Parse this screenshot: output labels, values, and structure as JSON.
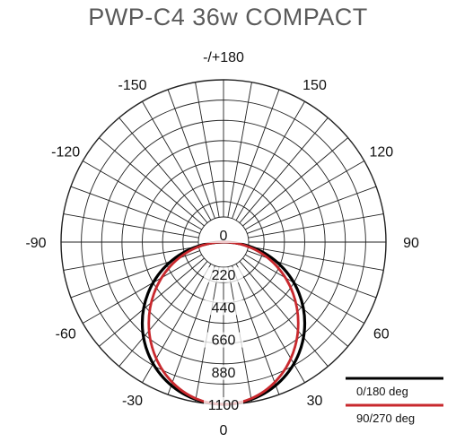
{
  "title": "PWP-C4 36w COMPACT",
  "chart_data": {
    "type": "polar",
    "title": "PWP-C4 36w COMPACT",
    "angle_labels": [
      {
        "angle": 180,
        "text": "-/+180"
      },
      {
        "angle": 150,
        "text": "150"
      },
      {
        "angle": -150,
        "text": "-150"
      },
      {
        "angle": 120,
        "text": "120"
      },
      {
        "angle": -120,
        "text": "-120"
      },
      {
        "angle": 90,
        "text": "90"
      },
      {
        "angle": -90,
        "text": "-90"
      },
      {
        "angle": 60,
        "text": "60"
      },
      {
        "angle": -60,
        "text": "-60"
      },
      {
        "angle": 30,
        "text": "30"
      },
      {
        "angle": -30,
        "text": "-30"
      },
      {
        "angle": 0,
        "text": "0"
      }
    ],
    "radial_ticks": [
      0,
      220,
      440,
      660,
      880,
      1100
    ],
    "radial_tick_labels": [
      "0",
      "220",
      "440",
      "660",
      "880",
      "1100"
    ],
    "rmax": 1100,
    "angle_step_deg": 10,
    "series": [
      {
        "name": "0/180 deg",
        "color": "#000000",
        "peak_value": 1100,
        "shape": "cosine"
      },
      {
        "name": "90/270 deg",
        "color": "#c8282d",
        "peak_value": 1100,
        "shape": "cosine"
      }
    ],
    "legend": [
      {
        "label": "0/180 deg",
        "color": "#000000"
      },
      {
        "label": "90/270 deg",
        "color": "#c8282d"
      }
    ],
    "legend_position": "bottom-right"
  }
}
